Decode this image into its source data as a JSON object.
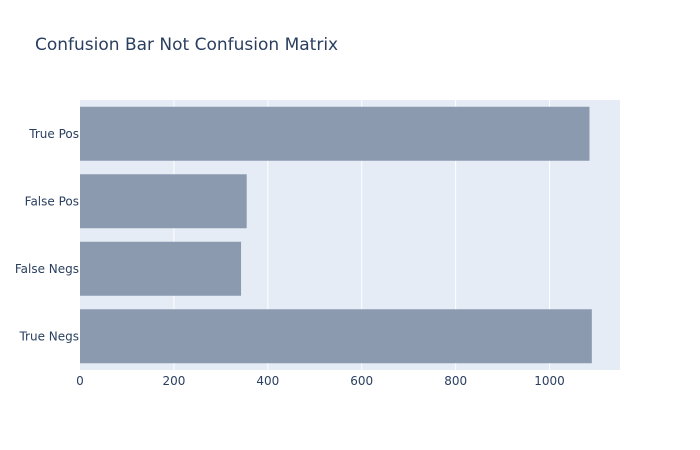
{
  "chart_data": {
    "type": "bar",
    "orientation": "horizontal",
    "title": "Confusion Bar Not Confusion Matrix",
    "xlabel": "",
    "ylabel": "",
    "categories": [
      "True Pos",
      "False Pos",
      "False Negs",
      "True Negs"
    ],
    "values": [
      1085,
      355,
      343,
      1090
    ],
    "xlim": [
      0,
      1150
    ],
    "x_ticks": [
      0,
      200,
      400,
      600,
      800,
      1000
    ],
    "grid": true,
    "colors": {
      "bar": "#8c9ab0",
      "plot_background": "#e5ecf6",
      "grid": "#ffffff",
      "text": "#2a3f5f"
    }
  }
}
